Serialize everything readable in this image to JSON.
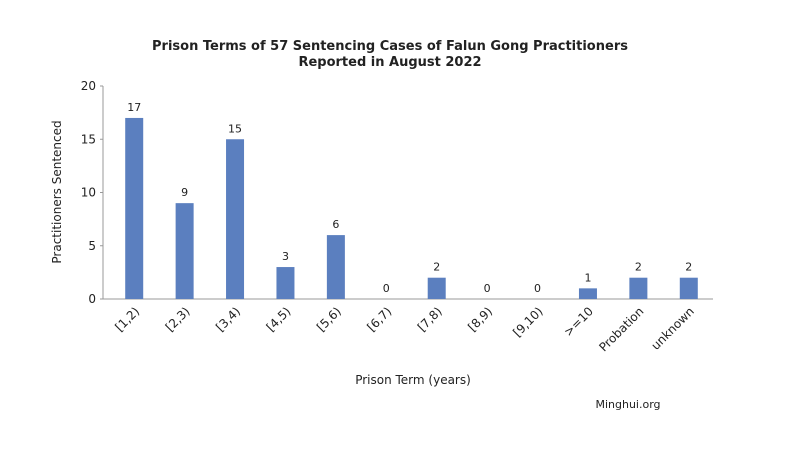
{
  "chart_data": {
    "type": "bar",
    "title": [
      "Prison Terms of 57 Sentencing Cases of Falun Gong Practitioners",
      "Reported in August 2022"
    ],
    "xlabel": "Prison Term (years)",
    "ylabel": "Practitioners Sentenced",
    "categories": [
      "[1,2)",
      "[2,3)",
      "[3,4)",
      "[4,5)",
      "[5,6)",
      "[6,7)",
      "[7,8)",
      "[8,9)",
      "[9,10)",
      ">=10",
      "Probation",
      "unknown"
    ],
    "values": [
      17,
      9,
      15,
      3,
      6,
      0,
      2,
      0,
      0,
      1,
      2,
      2
    ],
    "ylim": [
      0,
      20
    ],
    "yticks": [
      0,
      5,
      10,
      15,
      20
    ],
    "grid": false,
    "bar_color": "#5b7fbf",
    "source": "Minghui.org"
  }
}
